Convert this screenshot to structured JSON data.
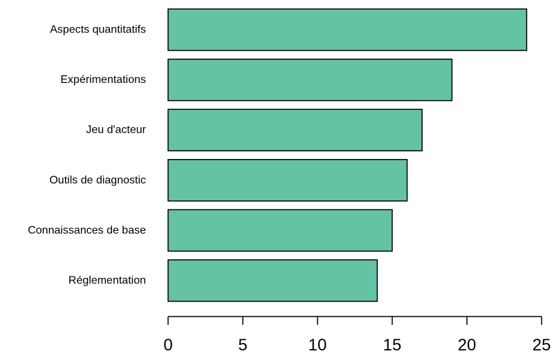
{
  "chart_data": {
    "type": "bar",
    "orientation": "horizontal",
    "categories": [
      "Aspects quantitatifs",
      "Expérimentations",
      "Jeu d'acteur",
      "Outils de diagnostic",
      "Connaissances de base",
      "Réglementation"
    ],
    "values": [
      24,
      19,
      17,
      16,
      15,
      14
    ],
    "title": "",
    "xlabel": "",
    "ylabel": "",
    "xlim": [
      0,
      25
    ],
    "x_ticks": [
      "0",
      "5",
      "10",
      "15",
      "20",
      "25"
    ],
    "grid": false,
    "legend": "none",
    "bar_color": "#66c2a5",
    "bar_edge_color": "#000000"
  }
}
